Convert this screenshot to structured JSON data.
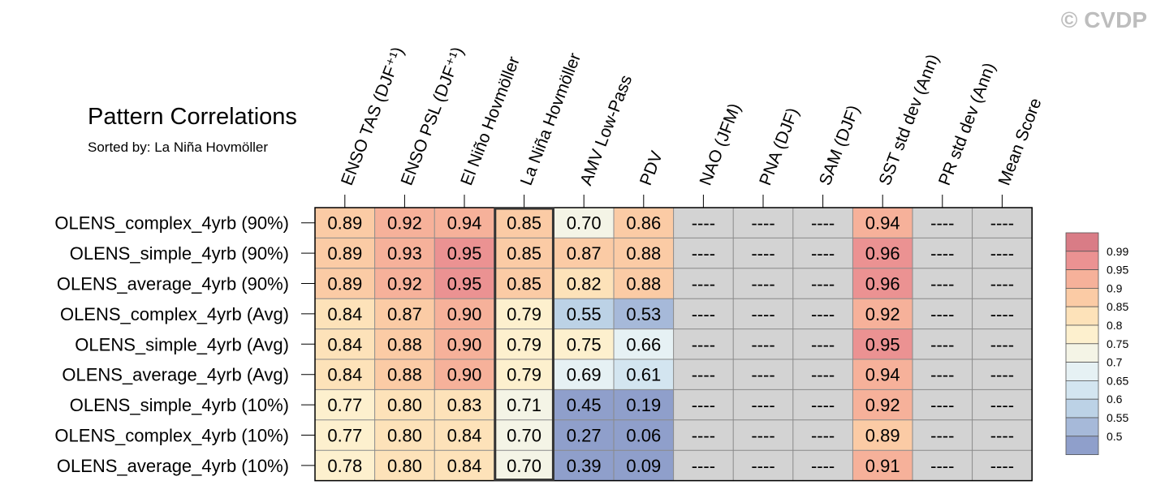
{
  "watermark": "© CVDP",
  "chart_data": {
    "type": "heatmap",
    "title": "Pattern Correlations",
    "subtitle": "Sorted by: La Niña Hovmöller",
    "columns": [
      "ENSO TAS (DJF⁺¹)",
      "ENSO PSL (DJF⁺¹)",
      "El Niño Hovmöller",
      "La Niña Hovmöller",
      "AMV Low-Pass",
      "PDV",
      "NAO (JFM)",
      "PNA (DJF)",
      "SAM (DJF)",
      "SST std dev (Ann)",
      "PR std dev (Ann)",
      "Mean Score"
    ],
    "sorted_column_index": 3,
    "missing_label": "----",
    "rows": [
      {
        "label": "OLENS_complex_4yrb (90%)",
        "values": [
          0.89,
          0.92,
          0.94,
          0.85,
          0.7,
          0.86,
          null,
          null,
          null,
          0.94,
          null,
          null
        ]
      },
      {
        "label": "OLENS_simple_4yrb (90%)",
        "values": [
          0.89,
          0.93,
          0.95,
          0.85,
          0.87,
          0.88,
          null,
          null,
          null,
          0.96,
          null,
          null
        ]
      },
      {
        "label": "OLENS_average_4yrb (90%)",
        "values": [
          0.89,
          0.92,
          0.95,
          0.85,
          0.82,
          0.88,
          null,
          null,
          null,
          0.96,
          null,
          null
        ]
      },
      {
        "label": "OLENS_complex_4yrb (Avg)",
        "values": [
          0.84,
          0.87,
          0.9,
          0.79,
          0.55,
          0.53,
          null,
          null,
          null,
          0.92,
          null,
          null
        ]
      },
      {
        "label": "OLENS_simple_4yrb (Avg)",
        "values": [
          0.84,
          0.88,
          0.9,
          0.79,
          0.75,
          0.66,
          null,
          null,
          null,
          0.95,
          null,
          null
        ]
      },
      {
        "label": "OLENS_average_4yrb (Avg)",
        "values": [
          0.84,
          0.88,
          0.9,
          0.79,
          0.69,
          0.61,
          null,
          null,
          null,
          0.94,
          null,
          null
        ]
      },
      {
        "label": "OLENS_simple_4yrb (10%)",
        "values": [
          0.77,
          0.8,
          0.83,
          0.71,
          0.45,
          0.19,
          null,
          null,
          null,
          0.92,
          null,
          null
        ]
      },
      {
        "label": "OLENS_complex_4yrb (10%)",
        "values": [
          0.77,
          0.8,
          0.84,
          0.7,
          0.27,
          0.06,
          null,
          null,
          null,
          0.89,
          null,
          null
        ]
      },
      {
        "label": "OLENS_average_4yrb (10%)",
        "values": [
          0.78,
          0.8,
          0.84,
          0.7,
          0.39,
          0.09,
          null,
          null,
          null,
          0.91,
          null,
          null
        ]
      }
    ],
    "legend": {
      "labels": [
        "0.99",
        "0.95",
        "0.9",
        "0.85",
        "0.8",
        "0.75",
        "0.7",
        "0.65",
        "0.6",
        "0.55",
        "0.5"
      ],
      "thresholds": [
        0.5,
        0.55,
        0.6,
        0.65,
        0.7,
        0.75,
        0.8,
        0.85,
        0.9,
        0.95,
        0.99
      ],
      "colors": [
        "#8f9fcb",
        "#a6b9d9",
        "#bcd2e6",
        "#d3e5f0",
        "#e6f1f4",
        "#f4f4e6",
        "#fdf0ce",
        "#fde2b9",
        "#fbcba5",
        "#f6b19a",
        "#eb9292",
        "#d97c86"
      ]
    },
    "missing_color": "#d3d3d3"
  }
}
